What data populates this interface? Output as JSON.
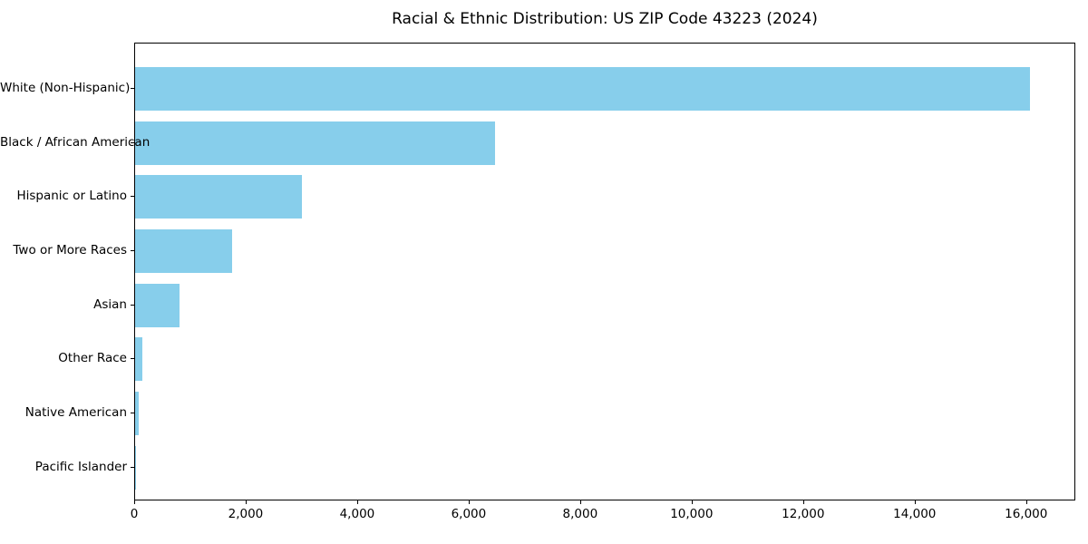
{
  "chart_data": {
    "type": "bar",
    "orientation": "horizontal",
    "title": "Racial & Ethnic Distribution: US ZIP Code 43223 (2024)",
    "categories": [
      "White (Non-Hispanic)",
      "Black / African American",
      "Hispanic or Latino",
      "Two or More Races",
      "Asian",
      "Other Race",
      "Native American",
      "Pacific Islander"
    ],
    "values": [
      16050,
      6450,
      2990,
      1740,
      800,
      130,
      60,
      15
    ],
    "xlabel": "",
    "ylabel": "",
    "xlim": [
      0,
      16850
    ],
    "x_ticks": [
      0,
      2000,
      4000,
      6000,
      8000,
      10000,
      12000,
      14000,
      16000
    ],
    "x_tick_labels": [
      "0",
      "2,000",
      "4,000",
      "6,000",
      "8,000",
      "10,000",
      "12,000",
      "14,000",
      "16,000"
    ],
    "bar_color": "#87CEEB",
    "text_color": "#000000",
    "grid": false,
    "legend": "none",
    "plot_border": true
  }
}
